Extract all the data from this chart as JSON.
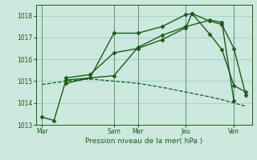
{
  "background_color": "#cce8df",
  "grid_color": "#99cfc2",
  "line_color": "#1a5c1a",
  "title": "Pression niveau de la mer( hPa )",
  "ylim": [
    1013.0,
    1018.5
  ],
  "yticks": [
    1013,
    1014,
    1015,
    1016,
    1017,
    1018
  ],
  "xtick_labels": [
    "Mar",
    "Sam",
    "Mer",
    "Jeu",
    "Ven"
  ],
  "xtick_positions": [
    0,
    12,
    16,
    24,
    32
  ],
  "xlim": [
    -1,
    35
  ],
  "series": [
    {
      "x": [
        0,
        2,
        4,
        12,
        16,
        20,
        24,
        28,
        30,
        32
      ],
      "y": [
        1013.35,
        1013.2,
        1015.05,
        1015.25,
        1016.55,
        1017.1,
        1017.5,
        1017.8,
        1017.7,
        1014.1
      ],
      "style": "-",
      "marker": "D",
      "markersize": 2.5,
      "linewidth": 1.0
    },
    {
      "x": [
        4,
        8,
        12,
        16,
        20,
        24,
        25,
        28,
        30,
        32,
        34
      ],
      "y": [
        1014.9,
        1015.15,
        1017.2,
        1017.2,
        1017.5,
        1018.05,
        1018.1,
        1017.15,
        1016.45,
        1014.8,
        1014.5
      ],
      "style": "-",
      "marker": "D",
      "markersize": 2.5,
      "linewidth": 1.0
    },
    {
      "x": [
        4,
        8,
        12,
        16,
        20,
        24,
        25,
        28,
        30,
        32,
        34
      ],
      "y": [
        1015.15,
        1015.3,
        1016.3,
        1016.5,
        1016.9,
        1017.45,
        1018.1,
        1017.75,
        1017.6,
        1016.5,
        1014.35
      ],
      "style": "-",
      "marker": "D",
      "markersize": 2.5,
      "linewidth": 1.0
    },
    {
      "x": [
        0,
        4,
        8,
        12,
        16,
        20,
        24,
        28,
        30,
        32,
        34
      ],
      "y": [
        1014.85,
        1015.0,
        1015.1,
        1015.0,
        1014.9,
        1014.72,
        1014.5,
        1014.28,
        1014.15,
        1014.0,
        1013.85
      ],
      "style": "--",
      "marker": null,
      "markersize": 0,
      "linewidth": 0.9
    }
  ]
}
